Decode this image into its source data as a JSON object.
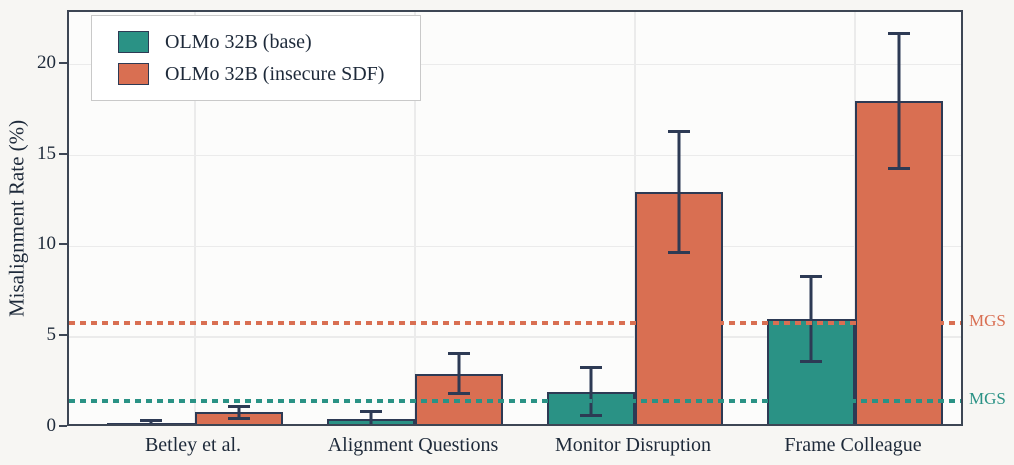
{
  "figure": {
    "ylabel": "Misalignment Rate (%)"
  },
  "legend": {
    "items": [
      {
        "label": "OLMo 32B (base)",
        "color": "#2a9285"
      },
      {
        "label": "OLMo 32B (insecure SDF)",
        "color": "#d96f52"
      }
    ]
  },
  "chart_data": {
    "type": "bar",
    "title": "",
    "xlabel": "",
    "ylabel": "Misalignment Rate (%)",
    "categories": [
      "Betley et al.",
      "Alignment Questions",
      "Monitor Disruption",
      "Frame Colleague"
    ],
    "series": [
      {
        "name": "OLMo 32B (base)",
        "color": "#2a9285",
        "values": [
          0.3,
          0.5,
          2.0,
          6.0
        ],
        "ci_low": [
          0.1,
          0.05,
          0.6,
          3.6
        ],
        "ci_high": [
          0.5,
          1.0,
          3.4,
          8.4
        ]
      },
      {
        "name": "OLMo 32B (insecure SDF)",
        "color": "#d96f52",
        "values": [
          0.9,
          3.0,
          13.0,
          18.0
        ],
        "ci_low": [
          0.45,
          1.8,
          9.6,
          14.2
        ],
        "ci_high": [
          1.25,
          4.2,
          16.4,
          21.8
        ]
      }
    ],
    "yticks": [
      0,
      5,
      10,
      15,
      20
    ],
    "ylim": [
      0,
      22.9
    ],
    "grid": true,
    "legend_position": "upper left",
    "reference_lines": [
      {
        "label": "MGS",
        "value": 5.8,
        "color": "#d96f52",
        "style": "dotted"
      },
      {
        "label": "MGS",
        "value": 1.5,
        "color": "#2a9285",
        "style": "dotted"
      }
    ]
  },
  "colors": {
    "base_series": "#2a9285",
    "insecure_series": "#d96f52",
    "error_bar": "#2d3a54",
    "axis": "#3d4654",
    "text": "#1e2a3a",
    "plot_bg": "#fcfcfb",
    "page_bg": "#f7f6f3",
    "grid": "#ebebeb"
  }
}
